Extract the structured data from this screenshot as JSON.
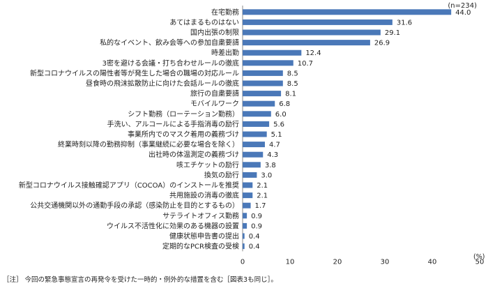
{
  "chart_data": {
    "type": "bar",
    "orientation": "horizontal",
    "sample_size_label": "(n=234)",
    "unit_label": "(%)",
    "categories": [
      "在宅勤務",
      "あてはまるものはない",
      "国内出張の制限",
      "私的なイベント、飲み会等への参加自粛要請",
      "時差出勤",
      "3密を避ける会議・打ち合わせルールの徹底",
      "新型コロナウイルスの陽性者等が発生した場合の職場の対応ルール",
      "昼食時の飛沫拡散防止に向けた会話ルールの徹底",
      "旅行の自粛要請",
      "モバイルワーク",
      "シフト勤務（ローテーション勤務）",
      "手洗い、アルコールによる手指消毒の励行",
      "事業所内でのマスク着用の義務づけ",
      "終業時刻以降の勤務抑制（事業継続に必要な場合を除く）",
      "出社時の体温測定の義務づけ",
      "咳エチケットの励行",
      "換気の励行",
      "新型コロナウイルス接触確認アプリ（COCOA）のインストールを推奨",
      "共用施設の消毒の徹底",
      "公共交通機関以外の通勤手段の承認（感染防止を目的とするもの）",
      "サテライトオフィス勤務",
      "ウイルス不活性化に効果のある機器の設置",
      "健康状態申告書の提出",
      "定期的なPCR検査の受検"
    ],
    "values": [
      44.0,
      31.6,
      29.1,
      26.9,
      12.4,
      10.7,
      8.5,
      8.5,
      8.1,
      6.8,
      6.0,
      5.6,
      5.1,
      4.7,
      4.3,
      3.8,
      3.0,
      2.1,
      2.1,
      1.7,
      0.9,
      0.9,
      0.4,
      0.4
    ],
    "value_labels": [
      "44.0",
      "31.6",
      "29.1",
      "26.9",
      "12.4",
      "10.7",
      "8.5",
      "8.5",
      "8.1",
      "6.8",
      "6.0",
      "5.6",
      "5.1",
      "4.7",
      "4.3",
      "3.8",
      "3.0",
      "2.1",
      "2.1",
      "1.7",
      "0.9",
      "0.9",
      "0.4",
      "0.4"
    ],
    "xlim": [
      0,
      50
    ],
    "xticks": [
      0,
      10,
      20,
      30,
      40,
      50
    ],
    "grid": false,
    "bar_color": "#4a78b8"
  },
  "note": "［注］ 今回の緊急事態宣言の再発令を受けた一時的・例外的な措置を含む［図表3も同じ］。"
}
